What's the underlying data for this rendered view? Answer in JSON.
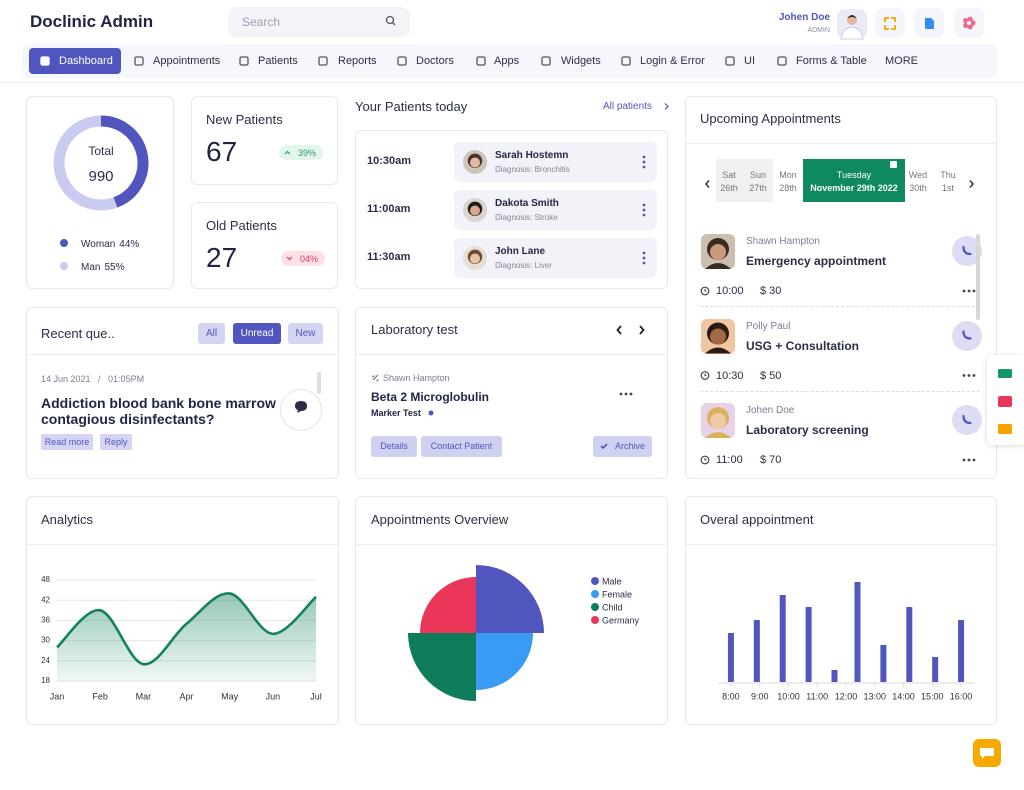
{
  "header": {
    "brand": "Doclinic Admin",
    "search_placeholder": "Search",
    "user_name": "Johen Doe",
    "user_role": "ADMIN"
  },
  "nav": [
    "Dashboard",
    "Appointments",
    "Patients",
    "Reports",
    "Doctors",
    "Apps",
    "Widgets",
    "Login & Error",
    "UI",
    "Forms & Table",
    "MORE"
  ],
  "stats": [
    {
      "title": "New Patients",
      "value": 67,
      "change": "39%"
    },
    {
      "title": "Old Patients",
      "value": 27,
      "change": "04%"
    }
  ],
  "patients_today": {
    "title": "Your Patients today",
    "link": "All patients",
    "rows": [
      {
        "time": "10:30am",
        "name": "Sarah Hostemn",
        "diagnosis": "Diagnosis: Bronchitis"
      },
      {
        "time": "11:00am",
        "name": "Dakota Smith",
        "diagnosis": "Diagnosis: Stroke"
      },
      {
        "time": "11:30am",
        "name": "John Lane",
        "diagnosis": "Diagnosis: Liver"
      }
    ]
  },
  "upcoming": {
    "title": "Upcoming Appointments",
    "days": [
      {
        "day": "Sat",
        "date": "26th"
      },
      {
        "day": "Sun",
        "date": "27th"
      },
      {
        "day": "Mon",
        "date": "28th"
      },
      {
        "day": "Tuesday",
        "date": "November 29th 2022"
      },
      {
        "day": "Wed",
        "date": "30th"
      },
      {
        "day": "Thu",
        "date": "1st"
      }
    ],
    "items": [
      {
        "name": "Shawn Hampton",
        "title": "Emergency appointment",
        "time": "10:00",
        "price": "$ 30"
      },
      {
        "name": "Polly Paul",
        "title": "USG + Consultation",
        "time": "10:30",
        "price": "$ 50"
      },
      {
        "name": "Johen Doe",
        "title": "Laboratory screening",
        "time": "11:00",
        "price": "$ 70"
      }
    ]
  },
  "questions": {
    "title": "Recent que..",
    "filters": [
      "All",
      "Unread",
      "New"
    ],
    "datetime": "14 Jun 2021   /   01:05PM",
    "question": "Addiction blood bank bone marrow contagious disinfectants?",
    "actions": [
      "Read more",
      "Reply"
    ]
  },
  "lab": {
    "title": "Laboratory test",
    "patient": "Shawn Hampton",
    "test": "Beta 2 Microglobulin",
    "marker": "Marker Test",
    "actions": [
      "Details",
      "Contact Patient",
      "Archive"
    ]
  },
  "chart_data": [
    {
      "type": "donut",
      "center_label": "Total",
      "total": 990,
      "categories": [
        "Woman",
        "Man"
      ],
      "values": [
        44,
        55
      ],
      "value_labels": [
        "44%",
        "55%"
      ],
      "colors": [
        "#5156be",
        "#c9cbf0"
      ]
    },
    {
      "type": "area",
      "title": "Analytics",
      "categories": [
        "Jan",
        "Feb",
        "Mar",
        "Apr",
        "May",
        "Jun",
        "Jul"
      ],
      "values": [
        28,
        39,
        23,
        35,
        44,
        32,
        43
      ],
      "color": "#13835b",
      "ylim": [
        18,
        48
      ],
      "yticks": [
        18,
        24,
        30,
        36,
        42,
        48
      ],
      "grid": true
    },
    {
      "type": "polar",
      "title": "Appointments Overview",
      "categories": [
        "Male",
        "Female",
        "Child",
        "Germany"
      ],
      "values": [
        68,
        57,
        68,
        56
      ],
      "colors": [
        "#5156be",
        "#3a9bf4",
        "#0f7d5c",
        "#ea3659"
      ]
    },
    {
      "type": "bar",
      "title": "Overal appointment",
      "x": [
        8,
        8.9,
        9.8,
        10.7,
        11.6,
        12.4,
        13.3,
        14.2,
        15.1,
        16
      ],
      "values": [
        49,
        62,
        87,
        75,
        12,
        100,
        37,
        75,
        25,
        62
      ],
      "color": "#5156be",
      "xlim": [
        7.55,
        16.45
      ],
      "ylim": [
        0,
        100
      ],
      "xticks": [
        {
          "value": 8,
          "label": "8:00"
        },
        {
          "value": 9,
          "label": "9:00"
        },
        {
          "value": 10,
          "label": "10:00"
        },
        {
          "value": 11,
          "label": "11:00"
        },
        {
          "value": 12,
          "label": "12:00"
        },
        {
          "value": 13,
          "label": "13:00"
        },
        {
          "value": 14,
          "label": "14:00"
        },
        {
          "value": 15,
          "label": "15:00"
        },
        {
          "value": 16,
          "label": "16:00"
        }
      ]
    }
  ]
}
